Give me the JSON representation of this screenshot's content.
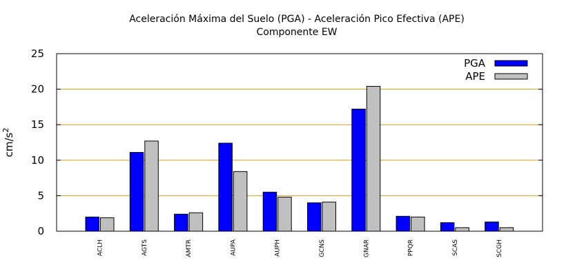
{
  "chart_data": {
    "type": "bar",
    "title_line1": "Aceleración Máxima del Suelo (PGA) -  Aceleración Pico Efectiva (APE)",
    "title_line2": "Componente EW",
    "ylabel_base": "cm/s",
    "ylabel_exp": "2",
    "xlabel": "",
    "ylim": [
      0,
      25
    ],
    "yticks": [
      "0",
      "5",
      "10",
      "15",
      "20",
      "25"
    ],
    "grid": "horizontal",
    "legend_position": "top-right",
    "categories": [
      "ACLH",
      "AGTS",
      "AMTR",
      "AUPA",
      "AUPH",
      "GCNS",
      "GNAR",
      "PPQR",
      "SCAS",
      "SCGH"
    ],
    "series": [
      {
        "name": "PGA",
        "color": "#0000ff",
        "values": [
          2.0,
          11.1,
          2.4,
          12.4,
          5.5,
          4.0,
          17.2,
          2.1,
          1.2,
          1.3
        ]
      },
      {
        "name": "APE",
        "color": "#c0c0c0",
        "values": [
          1.9,
          12.7,
          2.6,
          8.4,
          4.8,
          4.1,
          20.4,
          2.0,
          0.5,
          0.5
        ]
      }
    ],
    "grid_color": "#d4a017"
  }
}
